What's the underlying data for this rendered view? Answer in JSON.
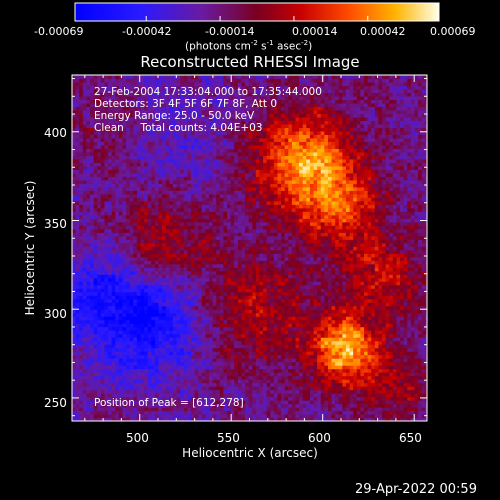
{
  "chart_data": {
    "type": "heatmap",
    "title": "Reconstructed RHESSI Image",
    "xlabel": "Heliocentric X (arcsec)",
    "ylabel": "Heliocentric Y (arcsec)",
    "xlim": [
      463,
      657
    ],
    "ylim": [
      237,
      432
    ],
    "xticks": [
      500,
      550,
      600,
      650
    ],
    "yticks": [
      250,
      300,
      350,
      400
    ],
    "colorbar": {
      "range": [
        -0.00069,
        0.00069
      ],
      "ticks": [
        "-0.00069",
        "-0.00042",
        "-0.00014",
        "0.00014",
        "0.00042",
        "0.00069"
      ],
      "unit_label": "(photons cm",
      "unit_sup1": "-2",
      "unit_mid1": " s",
      "unit_sup2": "-1",
      "unit_mid2": " asec",
      "unit_sup3": "-2",
      "unit_end": ")"
    },
    "annotations": {
      "line1": "27-Feb-2004 17:33:04.000 to 17:35:44.000",
      "line2": "Detectors: 3F 4F 5F 6F 7F 8F, Att 0",
      "line3": "Energy Range: 25.0 - 50.0 keV",
      "line4": "Clean     Total counts: 4.04E+03",
      "peak": "Position of Peak = [612,278]"
    },
    "peak": [
      612,
      278
    ],
    "sources": [
      {
        "x": 612,
        "y": 278,
        "value": 0.00069,
        "sigma": 14
      },
      {
        "x": 588,
        "y": 385,
        "value": 0.00062,
        "sigma": 20
      },
      {
        "x": 610,
        "y": 358,
        "value": 0.0004,
        "sigma": 16
      },
      {
        "x": 512,
        "y": 338,
        "value": 0.0003,
        "sigma": 18
      },
      {
        "x": 560,
        "y": 300,
        "value": 0.00028,
        "sigma": 22
      },
      {
        "x": 632,
        "y": 320,
        "value": 0.0003,
        "sigma": 16
      },
      {
        "x": 640,
        "y": 255,
        "value": 0.00022,
        "sigma": 14
      },
      {
        "x": 480,
        "y": 402,
        "value": 0.00012,
        "sigma": 18
      },
      {
        "x": 505,
        "y": 292,
        "value": -0.00042,
        "sigma": 22
      },
      {
        "x": 478,
        "y": 310,
        "value": -0.00025,
        "sigma": 18
      },
      {
        "x": 522,
        "y": 395,
        "value": -0.00012,
        "sigma": 25
      }
    ]
  },
  "footer_timestamp": "29-Apr-2022 00:59"
}
